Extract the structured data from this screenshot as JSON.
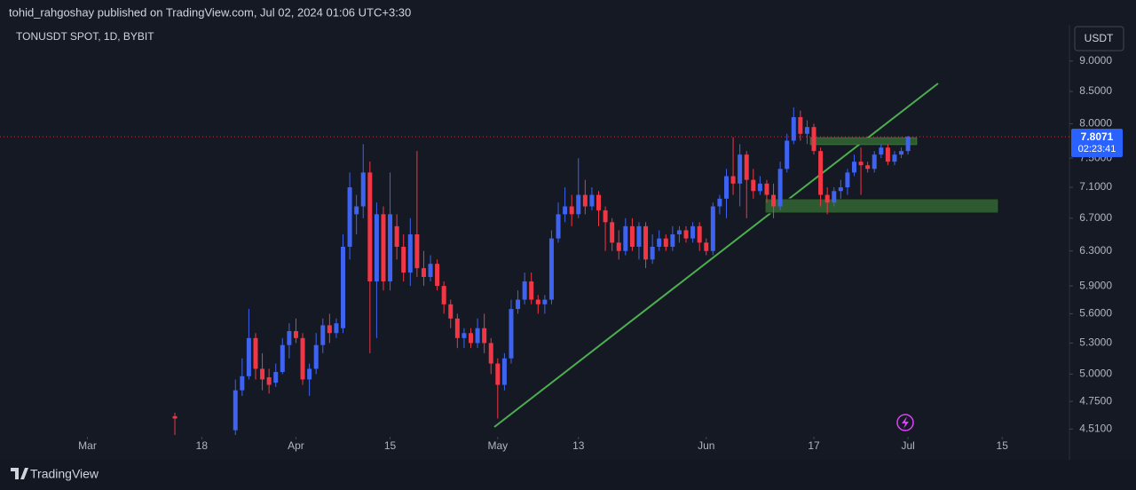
{
  "header": {
    "text": "tohid_rahgoshay published on TradingView.com, Jul 02, 2024 01:06 UTC+3:30"
  },
  "chart_data": {
    "type": "candlestick",
    "title": "TONUSDT SPOT, 1D, BYBIT",
    "currency": "USDT",
    "countdown": "02:23:41",
    "up_color": "#3d63f0",
    "down_color": "#f23645",
    "log_scale": true,
    "grid": false,
    "x": [
      "03-14",
      "03-23",
      "03-24",
      "03-25",
      "03-26",
      "03-27",
      "03-28",
      "03-29",
      "03-30",
      "03-31",
      "04-01",
      "04-02",
      "04-03",
      "04-04",
      "04-05",
      "04-06",
      "04-07",
      "04-08",
      "04-09",
      "04-10",
      "04-11",
      "04-12",
      "04-13",
      "04-14",
      "04-15",
      "04-16",
      "04-17",
      "04-18",
      "04-19",
      "04-20",
      "04-21",
      "04-22",
      "04-23",
      "04-24",
      "04-25",
      "04-26",
      "04-27",
      "04-28",
      "04-29",
      "04-30",
      "05-01",
      "05-02",
      "05-03",
      "05-04",
      "05-05",
      "05-06",
      "05-07",
      "05-08",
      "05-09",
      "05-10",
      "05-11",
      "05-12",
      "05-13",
      "05-14",
      "05-15",
      "05-16",
      "05-17",
      "05-18",
      "05-19",
      "05-20",
      "05-21",
      "05-22",
      "05-23",
      "05-24",
      "05-25",
      "05-26",
      "05-27",
      "05-28",
      "05-29",
      "05-30",
      "05-31",
      "06-01",
      "06-02",
      "06-03",
      "06-04",
      "06-05",
      "06-06",
      "06-07",
      "06-08",
      "06-09",
      "06-10",
      "06-11",
      "06-12",
      "06-13",
      "06-14",
      "06-15",
      "06-16",
      "06-17",
      "06-18",
      "06-19",
      "06-20",
      "06-21",
      "06-22",
      "06-23",
      "06-24",
      "06-25",
      "06-26",
      "06-27",
      "06-28",
      "06-29",
      "06-30",
      "07-01"
    ],
    "open": [
      4.62,
      4.5,
      4.85,
      4.98,
      5.35,
      5.05,
      4.97,
      4.92,
      5.02,
      5.28,
      5.42,
      5.35,
      4.95,
      5.05,
      5.28,
      5.48,
      5.4,
      5.45,
      6.35,
      6.75,
      6.85,
      7.3,
      5.95,
      6.75,
      5.95,
      6.6,
      6.35,
      6.05,
      6.5,
      6.1,
      6.0,
      6.15,
      5.9,
      5.7,
      5.55,
      5.35,
      5.4,
      5.3,
      5.45,
      5.3,
      5.1,
      4.9,
      5.15,
      5.65,
      5.75,
      5.95,
      5.75,
      5.7,
      5.75,
      6.45,
      6.75,
      6.85,
      6.75,
      7.0,
      6.85,
      7.0,
      6.8,
      6.65,
      6.4,
      6.3,
      6.6,
      6.35,
      6.6,
      6.2,
      6.35,
      6.45,
      6.35,
      6.5,
      6.55,
      6.45,
      6.6,
      6.4,
      6.3,
      6.85,
      6.95,
      7.25,
      7.15,
      7.55,
      7.2,
      7.05,
      7.15,
      7.0,
      6.85,
      7.35,
      7.75,
      8.1,
      7.85,
      7.95,
      7.6,
      7.0,
      6.9,
      7.05,
      7.1,
      7.3,
      7.45,
      7.4,
      7.35,
      7.55,
      7.65,
      7.45,
      7.55,
      7.6
    ],
    "high": [
      4.65,
      4.95,
      5.15,
      5.65,
      5.4,
      5.2,
      5.05,
      5.1,
      5.35,
      5.5,
      5.55,
      5.4,
      5.1,
      5.4,
      5.55,
      5.6,
      5.55,
      6.5,
      7.3,
      7.0,
      7.7,
      7.45,
      6.9,
      6.85,
      7.3,
      6.75,
      6.5,
      6.7,
      7.6,
      6.3,
      6.25,
      6.2,
      5.95,
      5.75,
      5.6,
      5.45,
      5.45,
      5.55,
      5.6,
      5.35,
      5.15,
      5.2,
      5.75,
      5.85,
      6.05,
      6.05,
      5.8,
      5.8,
      6.55,
      6.9,
      7.1,
      7.0,
      7.5,
      7.2,
      7.1,
      7.05,
      6.85,
      6.7,
      6.55,
      6.7,
      6.7,
      6.65,
      6.65,
      6.5,
      6.55,
      6.5,
      6.6,
      6.6,
      6.6,
      6.65,
      6.65,
      6.45,
      6.9,
      7.0,
      7.35,
      7.8,
      7.7,
      7.6,
      7.35,
      7.25,
      7.2,
      7.15,
      7.45,
      7.85,
      8.25,
      8.2,
      8.05,
      8.0,
      7.65,
      7.1,
      7.1,
      7.2,
      7.35,
      7.55,
      7.65,
      7.45,
      7.6,
      7.7,
      7.7,
      7.6,
      7.65,
      7.82
    ],
    "low": [
      4.45,
      4.46,
      4.8,
      4.95,
      4.95,
      4.85,
      4.82,
      4.88,
      5.0,
      5.15,
      5.3,
      4.9,
      4.8,
      5.0,
      5.2,
      5.3,
      5.35,
      5.4,
      6.2,
      6.5,
      6.7,
      5.2,
      5.35,
      5.85,
      5.85,
      6.2,
      5.95,
      5.9,
      6.0,
      5.9,
      5.95,
      5.85,
      5.6,
      5.45,
      5.25,
      5.25,
      5.25,
      5.25,
      5.2,
      5.0,
      4.6,
      4.85,
      5.1,
      5.6,
      5.7,
      5.7,
      5.6,
      5.6,
      5.7,
      6.4,
      6.65,
      6.6,
      6.7,
      6.75,
      6.8,
      6.6,
      6.3,
      6.3,
      6.2,
      6.25,
      6.3,
      6.2,
      6.1,
      6.15,
      6.3,
      6.3,
      6.3,
      6.4,
      6.4,
      6.4,
      6.3,
      6.25,
      6.25,
      6.75,
      6.7,
      7.0,
      6.85,
      6.7,
      6.95,
      7.0,
      6.9,
      6.7,
      6.8,
      7.3,
      7.7,
      7.75,
      7.7,
      7.55,
      6.85,
      6.75,
      6.85,
      6.95,
      7.0,
      7.25,
      7.0,
      7.3,
      7.3,
      7.5,
      7.4,
      7.4,
      7.5,
      7.55
    ],
    "close": [
      4.6,
      4.85,
      4.98,
      5.35,
      5.05,
      4.95,
      4.9,
      5.02,
      5.28,
      5.42,
      5.35,
      4.95,
      5.05,
      5.28,
      5.48,
      5.4,
      5.5,
      6.35,
      7.1,
      6.85,
      7.3,
      5.95,
      6.75,
      5.95,
      6.75,
      6.35,
      6.05,
      6.5,
      6.1,
      6.0,
      6.15,
      5.9,
      5.7,
      5.55,
      5.35,
      5.4,
      5.3,
      5.45,
      5.3,
      5.1,
      4.9,
      5.15,
      5.65,
      5.75,
      5.95,
      5.75,
      5.7,
      5.75,
      6.45,
      6.75,
      6.85,
      6.75,
      7.0,
      6.85,
      7.0,
      6.8,
      6.65,
      6.4,
      6.3,
      6.6,
      6.35,
      6.6,
      6.2,
      6.35,
      6.45,
      6.35,
      6.5,
      6.55,
      6.45,
      6.6,
      6.4,
      6.3,
      6.85,
      6.95,
      7.25,
      7.15,
      7.55,
      7.2,
      7.05,
      7.15,
      7.0,
      6.85,
      7.35,
      7.75,
      8.1,
      7.85,
      7.95,
      7.6,
      7.0,
      6.9,
      7.05,
      7.1,
      7.3,
      7.45,
      7.4,
      7.35,
      7.55,
      7.65,
      7.45,
      7.55,
      7.6,
      7.8071
    ],
    "xlim": [
      "02-17",
      "07-25"
    ],
    "xticks": [
      {
        "value": "03-01",
        "label": "Mar"
      },
      {
        "value": "03-18",
        "label": "18"
      },
      {
        "value": "04-01",
        "label": "Apr"
      },
      {
        "value": "04-15",
        "label": "15"
      },
      {
        "value": "05-01",
        "label": "May"
      },
      {
        "value": "05-13",
        "label": "13"
      },
      {
        "value": "06-01",
        "label": "Jun"
      },
      {
        "value": "06-17",
        "label": "17"
      },
      {
        "value": "07-01",
        "label": "Jul"
      },
      {
        "value": "07-15",
        "label": "15"
      }
    ],
    "ylim": [
      4.46,
      9.6
    ],
    "yticks": [
      {
        "value": 9.0,
        "label": "9.0000"
      },
      {
        "value": 8.5,
        "label": "8.5000"
      },
      {
        "value": 8.0,
        "label": "8.0000"
      },
      {
        "value": 7.5,
        "label": "7.5000"
      },
      {
        "value": 7.1,
        "label": "7.1000"
      },
      {
        "value": 6.7,
        "label": "6.7000"
      },
      {
        "value": 6.3,
        "label": "6.3000"
      },
      {
        "value": 5.9,
        "label": "5.9000"
      },
      {
        "value": 5.6,
        "label": "5.6000"
      },
      {
        "value": 5.3,
        "label": "5.3000"
      },
      {
        "value": 5.0,
        "label": "5.0000"
      },
      {
        "value": 4.75,
        "label": "4.7500"
      },
      {
        "value": 4.51,
        "label": "4.5100"
      }
    ]
  },
  "footer": {
    "brand": "TradingView"
  }
}
